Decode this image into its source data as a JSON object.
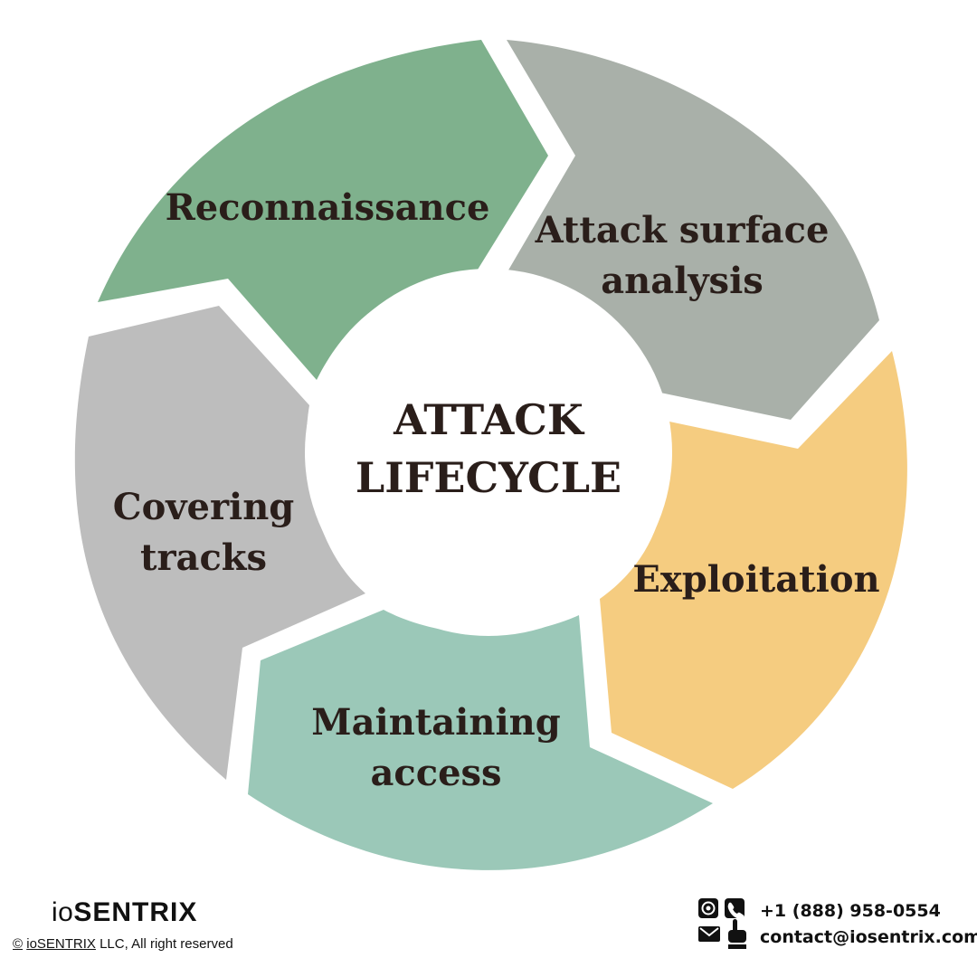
{
  "diagram": {
    "center": {
      "line1": "ATTACK",
      "line2": "LIFECYCLE"
    },
    "segments": [
      {
        "id": "reconnaissance",
        "lines": [
          "Reconnaissance"
        ],
        "color": "#7fb18d"
      },
      {
        "id": "attack-surface-analysis",
        "lines": [
          "Attack surface",
          "analysis"
        ],
        "color": "#a9b0a9"
      },
      {
        "id": "exploitation",
        "lines": [
          "Exploitation"
        ],
        "color": "#f5cc80"
      },
      {
        "id": "maintaining-access",
        "lines": [
          "Maintaining",
          "access"
        ],
        "color": "#9bc8b8"
      },
      {
        "id": "covering-tracks",
        "lines": [
          "Covering",
          "tracks"
        ],
        "color": "#bdbdbd"
      }
    ]
  },
  "footer": {
    "logo_prefix": "io",
    "logo_main": "SENTRIX",
    "copyright_symbol": "©",
    "copyright_company": "ioSENTRIX",
    "copyright_rest": " LLC, All right reserved",
    "phone": "+1 (888) 958-0554",
    "email": "contact@iosentrix.com"
  },
  "icons": {
    "at": "at-sign-icon",
    "phone": "phone-icon",
    "mail": "envelope-icon",
    "pointer": "hand-pointer-icon"
  }
}
